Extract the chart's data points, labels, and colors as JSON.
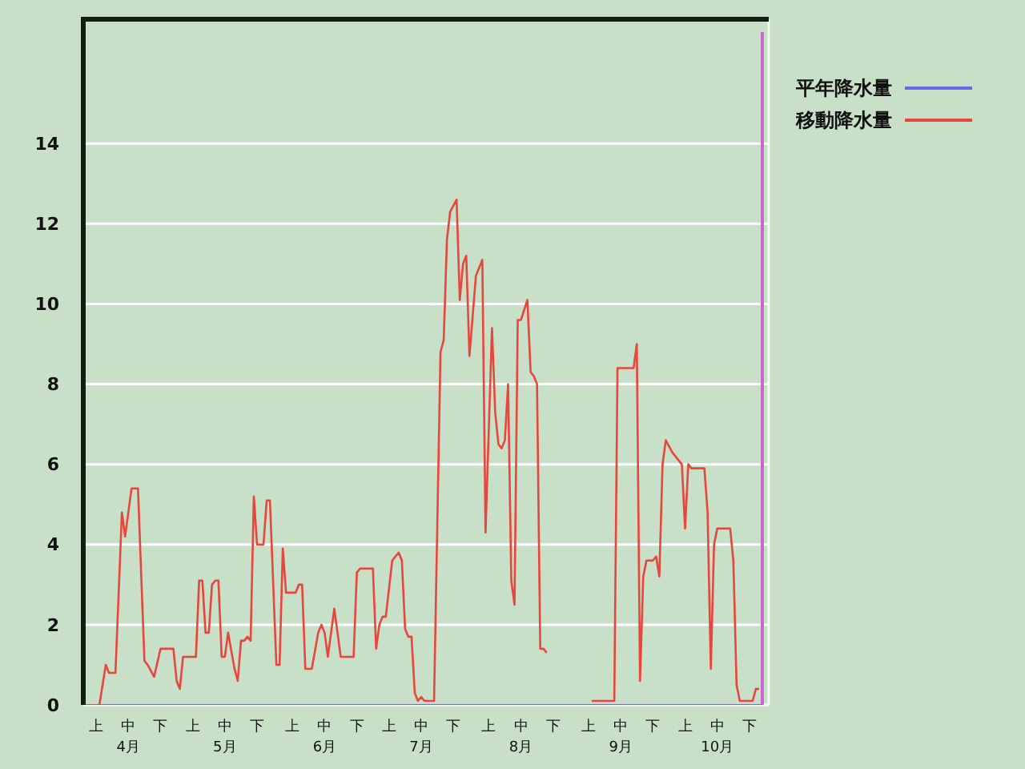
{
  "chart_data": {
    "type": "line",
    "xlim": [
      "--04-01",
      "--10-31"
    ],
    "ylim": [
      0,
      17.1
    ],
    "yticks": [
      0,
      2,
      4,
      6,
      8,
      10,
      12,
      14
    ],
    "xticks": [
      {
        "value": "--04-05",
        "label": "上"
      },
      {
        "value": "--04-15",
        "label": "中\n4月"
      },
      {
        "value": "--04-25",
        "label": "下"
      },
      {
        "value": "--05-05",
        "label": "上"
      },
      {
        "value": "--05-15",
        "label": "中\n5月"
      },
      {
        "value": "--05-25",
        "label": "下"
      },
      {
        "value": "--06-05",
        "label": "上"
      },
      {
        "value": "--06-15",
        "label": "中\n6月"
      },
      {
        "value": "--06-25",
        "label": "下"
      },
      {
        "value": "--07-05",
        "label": "上"
      },
      {
        "value": "--07-15",
        "label": "中\n7月"
      },
      {
        "value": "--07-25",
        "label": "下"
      },
      {
        "value": "--08-05",
        "label": "上"
      },
      {
        "value": "--08-15",
        "label": "中\n8月"
      },
      {
        "value": "--08-25",
        "label": "下"
      },
      {
        "value": "--09-05",
        "label": "上"
      },
      {
        "value": "--09-15",
        "label": "中\n9月"
      },
      {
        "value": "--09-25",
        "label": "下"
      },
      {
        "value": "--10-05",
        "label": "上"
      },
      {
        "value": "--10-15",
        "label": "中\n10月"
      },
      {
        "value": "--10-25",
        "label": "下"
      }
    ],
    "grid": "y",
    "legend": "top right",
    "marker": "none",
    "line_style": "solid",
    "ref_lines": [
      {
        "axis": "x",
        "value": "--10-29",
        "color": "#cc66cc"
      }
    ],
    "series": [
      {
        "name": "平年降水量",
        "color": "#6a6ae8",
        "x": [
          "--04-06",
          "--10-29"
        ],
        "values": [
          0,
          0
        ]
      },
      {
        "name": "移動降水量",
        "color": "#e8453c",
        "x": [
          "--04-01",
          "--04-06",
          "--04-08",
          "--04-09",
          "--04-11",
          "--04-13",
          "--04-14",
          "--04-16",
          "--04-18",
          "--04-20",
          "--04-21",
          "--04-23",
          "--04-25",
          "--04-29",
          "--04-30",
          "--05-01",
          "--05-02",
          "--05-06",
          "--05-07",
          "--05-08",
          "--05-09",
          "--05-10",
          "--05-11",
          "--05-12",
          "--05-13",
          "--05-14",
          "--05-15",
          "--05-16",
          "--05-18",
          "--05-19",
          "--05-20",
          "--05-21",
          "--05-22",
          "--05-23",
          "--05-24",
          "--05-25",
          "--05-27",
          "--05-28",
          "--05-29",
          "--05-31",
          "--06-01",
          "--06-02",
          "--06-03",
          "--06-06",
          "--06-07",
          "--06-08",
          "--06-09",
          "--06-11",
          "--06-13",
          "--06-14",
          "--06-15",
          "--06-16",
          "--06-18",
          "--06-19",
          "--06-20",
          "--06-24",
          "--06-25",
          "--06-26",
          "--06-30",
          "--07-01",
          "--07-02",
          "--07-03",
          "--07-04",
          "--07-06",
          "--07-08",
          "--07-09",
          "--07-10",
          "--07-11",
          "--07-12",
          "--07-13",
          "--07-14",
          "--07-15",
          "--07-16",
          "--07-19",
          "--07-21",
          "--07-22",
          "--07-23",
          "--07-24",
          "--07-26",
          "--07-27",
          "--07-28",
          "--07-29",
          "--07-30",
          "--08-01",
          "--08-03",
          "--08-04",
          "--08-06",
          "--08-07",
          "--08-08",
          "--08-09",
          "--08-10",
          "--08-11",
          "--08-12",
          "--08-13",
          "--08-14",
          "--08-15",
          "--08-17",
          "--08-18",
          "--08-19",
          "--08-20",
          "--08-21",
          "--08-22",
          "--08-23",
          "--08-28",
          "--09-06",
          "--09-13",
          "--09-14",
          "--09-19",
          "--09-20",
          "--09-21",
          "--09-22",
          "--09-23",
          "--09-25",
          "--09-26",
          "--09-27",
          "--09-28",
          "--09-29",
          "--10-01",
          "--10-04",
          "--10-05",
          "--10-06",
          "--10-07",
          "--10-11",
          "--10-12",
          "--10-13",
          "--10-14",
          "--10-15",
          "--10-19",
          "--10-20",
          "--10-21",
          "--10-22",
          "--10-26",
          "--10-27",
          "--10-28"
        ],
        "values": [
          0,
          0,
          1,
          0.8,
          0.8,
          4.8,
          4.2,
          5.4,
          5.4,
          1.1,
          1,
          0.7,
          1.4,
          1.4,
          0.6,
          0.4,
          1.2,
          1.2,
          3.1,
          3.1,
          1.8,
          1.8,
          3,
          3.1,
          3.1,
          1.2,
          1.2,
          1.8,
          0.9,
          0.6,
          1.6,
          1.6,
          1.7,
          1.6,
          5.2,
          4,
          4,
          5.1,
          5.1,
          1,
          1,
          3.9,
          2.8,
          2.8,
          3,
          3,
          0.9,
          0.9,
          1.8,
          2,
          1.8,
          1.2,
          2.4,
          1.8,
          1.2,
          1.2,
          3.3,
          3.4,
          3.4,
          1.4,
          2,
          2.2,
          2.2,
          3.6,
          3.8,
          3.6,
          1.9,
          1.7,
          1.7,
          0.3,
          0.1,
          0.2,
          0.1,
          0.1,
          8.8,
          9.1,
          11.6,
          12.3,
          12.6,
          10.1,
          11,
          11.2,
          8.7,
          10.7,
          11.1,
          4.3,
          9.4,
          7.3,
          6.5,
          6.4,
          6.6,
          8,
          3.1,
          2.5,
          9.6,
          9.6,
          10.1,
          8.3,
          8.2,
          8,
          1.4,
          1.4,
          1.3,
          null,
          0.1,
          0.1,
          8.4,
          8.4,
          9,
          0.6,
          3.2,
          3.6,
          3.6,
          3.7,
          3.2,
          6,
          6.6,
          6.3,
          6,
          4.4,
          6,
          5.9,
          5.9,
          4.8,
          0.9,
          4,
          4.4,
          4.4,
          3.6,
          0.5,
          0.1,
          0.1,
          0.4,
          0.4
        ]
      }
    ]
  }
}
